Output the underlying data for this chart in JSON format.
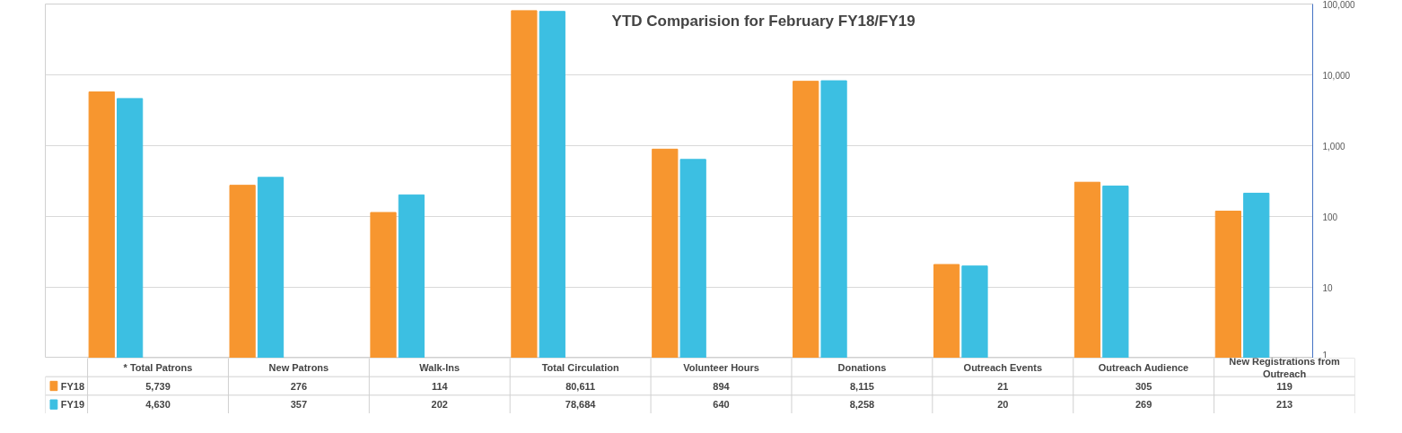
{
  "chart_data": {
    "type": "bar",
    "title": "YTD Comparision for February FY18/FY19",
    "categories": [
      "* Total Patrons",
      "New Patrons",
      "Walk-Ins",
      "Total Circulation",
      "Volunteer Hours",
      "Donations",
      "Outreach Events",
      "Outreach Audience",
      "New Registrations from Outreach"
    ],
    "series": [
      {
        "name": "FY18",
        "color": "#f7962f",
        "values": [
          5739,
          276,
          114,
          80611,
          894,
          8115,
          21,
          305,
          119
        ],
        "value_labels": [
          "5,739",
          "276",
          "114",
          "80,611",
          "894",
          "8,115",
          "21",
          "305",
          "119"
        ]
      },
      {
        "name": "FY19",
        "color": "#3cbfe2",
        "values": [
          4630,
          357,
          202,
          78684,
          640,
          8258,
          20,
          269,
          213
        ],
        "value_labels": [
          "4,630",
          "357",
          "202",
          "78,684",
          "640",
          "8,258",
          "20",
          "269",
          "213"
        ]
      }
    ],
    "log": "y",
    "ylim": [
      1,
      100000
    ],
    "yticks": [
      1,
      10,
      100,
      {
        "value": 1000,
        "label": "1,000"
      },
      {
        "value": 10000,
        "label": "10,000"
      },
      {
        "value": 100000,
        "label": "100,000"
      }
    ],
    "grid": "y",
    "legend": "bottom left"
  }
}
